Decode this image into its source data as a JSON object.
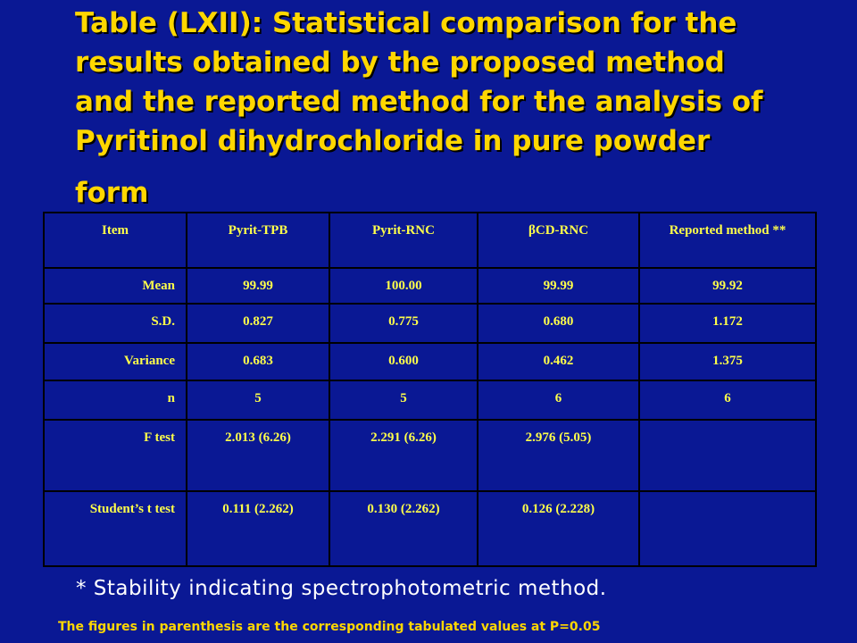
{
  "title": {
    "lines": [
      "Table (LXII): Statistical comparison for the",
      "results obtained by the proposed method",
      "and the reported method for the analysis of",
      "Pyritinol dihydrochloride in pure powder",
      "form"
    ]
  },
  "table": {
    "headers": [
      "Item",
      "Pyrit-TPB",
      "Pyrit-RNC",
      "βCD-RNC",
      "Reported method **"
    ],
    "rows": [
      [
        "Mean",
        "99.99",
        "100.00",
        "99.99",
        "99.92"
      ],
      [
        "S.D.",
        "0.827",
        "0.775",
        "0.680",
        "1.172"
      ],
      [
        "Variance",
        "0.683",
        "0.600",
        "0.462",
        "1.375"
      ],
      [
        "n",
        "5",
        "5",
        "6",
        "6"
      ],
      [
        "F test",
        "2.013 (6.26)",
        "2.291 (6.26)",
        "2.976 (5.05)",
        ""
      ],
      [
        "Student’s t test",
        "0.111 (2.262)",
        "0.130 (2.262)",
        "0.126 (2.228)",
        ""
      ]
    ]
  },
  "footnote": "* Stability indicating spectrophotometric method.",
  "tabulated_note": "The figures in parenthesis are the corresponding tabulated values at P=0.05",
  "colors": {
    "background": "#0a1894",
    "title_text": "#ffd700",
    "table_text": "#ffff4a",
    "table_border": "#000000",
    "footnote_text": "#ffffff"
  }
}
